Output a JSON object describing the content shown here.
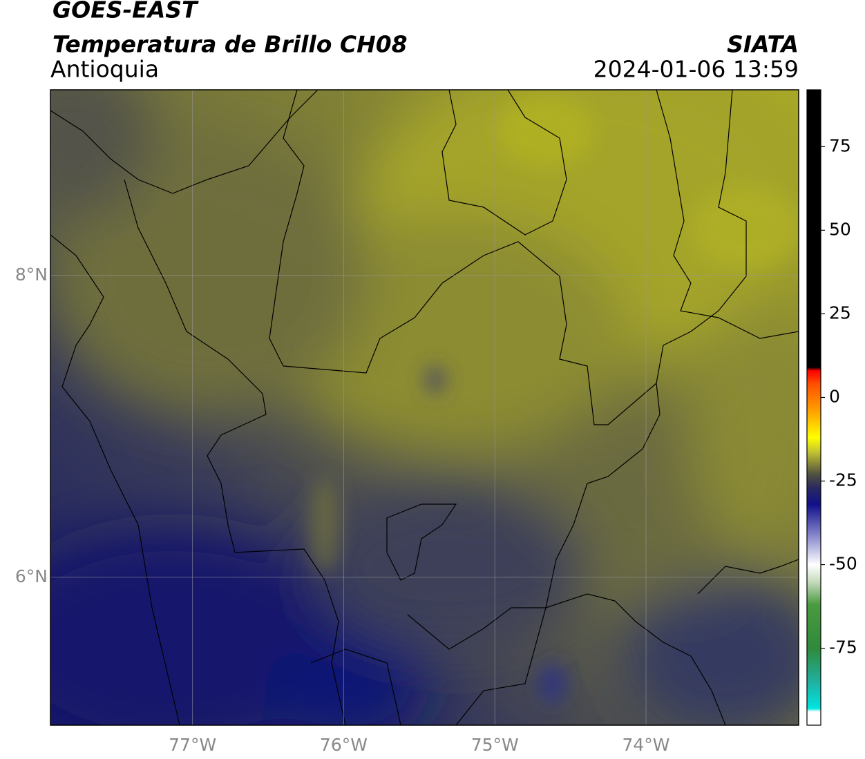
{
  "map": {
    "title": "GOES-EAST",
    "subtitle": "Temperatura de Brillo CH08",
    "region": "Antioquia",
    "source": "SIATA",
    "timestamp": "2024-01-06 13:59",
    "xlim": [
      -77.94,
      -72.99
    ],
    "ylim": [
      5.02,
      9.23
    ],
    "xticks": [
      {
        "value": -77,
        "label": "77°W"
      },
      {
        "value": -76,
        "label": "76°W"
      },
      {
        "value": -75,
        "label": "75°W"
      },
      {
        "value": -74,
        "label": "74°W"
      }
    ],
    "yticks": [
      {
        "value": 6,
        "label": "6°N"
      },
      {
        "value": 8,
        "label": "8°N"
      }
    ],
    "colorbar": {
      "lim": [
        -98,
        92
      ],
      "ticks": [
        -75,
        -50,
        -25,
        0,
        25,
        50,
        75
      ],
      "stops": [
        {
          "value": -98,
          "color": "#ffffff"
        },
        {
          "value": -94,
          "color": "#ffffff"
        },
        {
          "value": -93,
          "color": "#00e5e0"
        },
        {
          "value": -85,
          "color": "#20b0a0"
        },
        {
          "value": -75,
          "color": "#2f8a3a"
        },
        {
          "value": -62,
          "color": "#4a9a40"
        },
        {
          "value": -55,
          "color": "#c8dcc0"
        },
        {
          "value": -50,
          "color": "#ffffff"
        },
        {
          "value": -42,
          "color": "#9090d0"
        },
        {
          "value": -32,
          "color": "#10108a"
        },
        {
          "value": -27,
          "color": "#2a2a60"
        },
        {
          "value": -23,
          "color": "#505040"
        },
        {
          "value": -16,
          "color": "#c8c830"
        },
        {
          "value": -12,
          "color": "#ffff00"
        },
        {
          "value": -4,
          "color": "#ffa000"
        },
        {
          "value": 4,
          "color": "#ff5000"
        },
        {
          "value": 8,
          "color": "#ff0000"
        },
        {
          "value": 9,
          "color": "#000000"
        },
        {
          "value": 92,
          "color": "#000000"
        }
      ]
    }
  }
}
